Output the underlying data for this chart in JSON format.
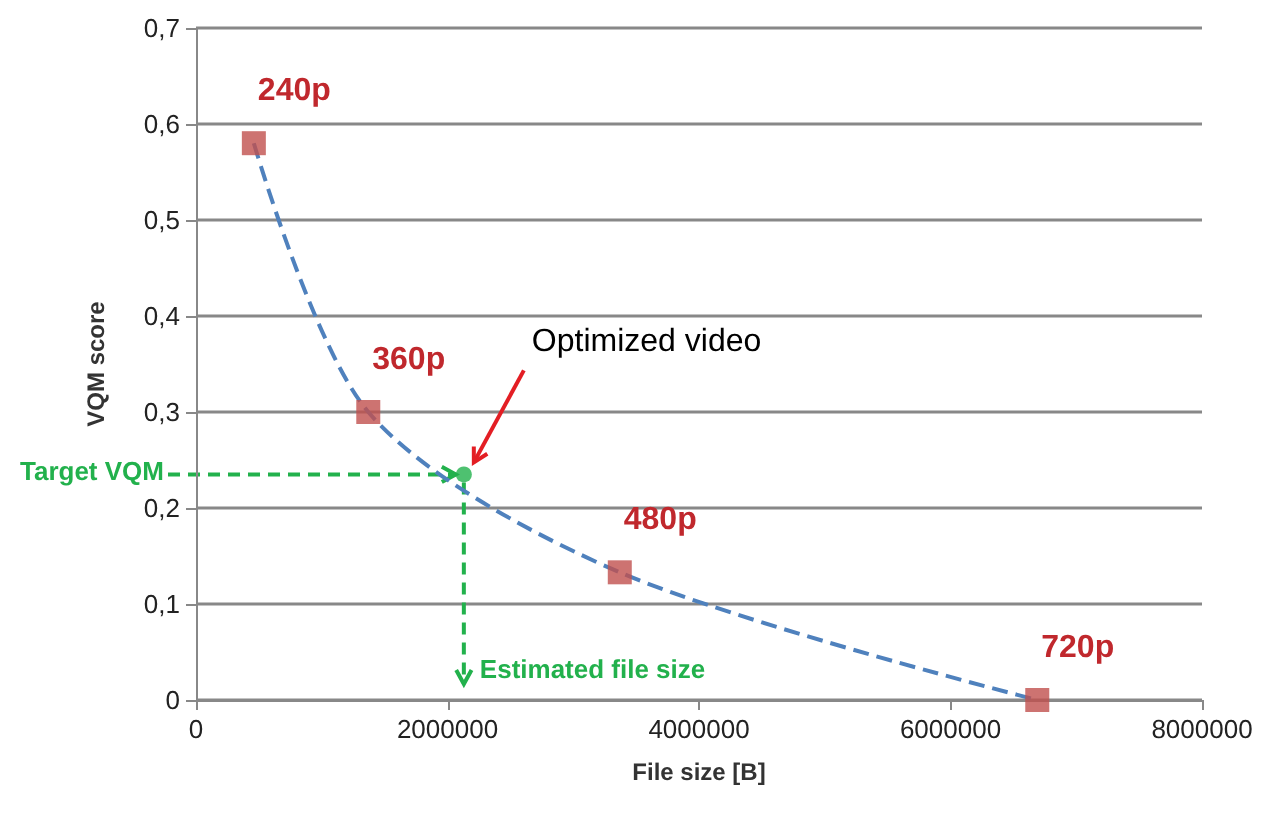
{
  "chart_data": {
    "type": "line",
    "xlabel": "File size [B]",
    "ylabel": "VQM score",
    "xlim": [
      0,
      8000000
    ],
    "xticks": [
      0,
      2000000,
      4000000,
      6000000,
      8000000
    ],
    "ylim": [
      0,
      0.7
    ],
    "yticks": [
      0,
      {
        "value": 0.1,
        "label": "0,1"
      },
      {
        "value": 0.2,
        "label": "0,2"
      },
      {
        "value": 0.3,
        "label": "0,3"
      },
      {
        "value": 0.4,
        "label": "0,4"
      },
      {
        "value": 0.5,
        "label": "0,5"
      },
      {
        "value": 0.6,
        "label": "0,6"
      },
      {
        "value": 0.7,
        "label": "0,7"
      }
    ],
    "grid": "y",
    "series": [
      {
        "color": "#4f81bd",
        "marker": "none",
        "line_style": "dashed",
        "x": [
          460000,
          1370000,
          3370000,
          6690000
        ],
        "values": [
          0.58,
          0.3,
          0.133,
          0
        ]
      },
      {
        "type": "scatter",
        "color": "#c0504d",
        "marker": "square",
        "x": [
          460000,
          1370000,
          3370000,
          6690000
        ],
        "values": [
          0.58,
          0.3,
          0.133,
          0
        ]
      },
      {
        "type": "scatter",
        "color": "#22b14c",
        "marker": "circle",
        "x": [
          2130000
        ],
        "values": [
          0.235
        ]
      }
    ],
    "annotations": [
      {
        "text": "Optimized video",
        "x": 2130000,
        "y": 0.235
      },
      {
        "text": "Target VQM",
        "x": 2130000,
        "y": 0.235
      },
      {
        "text": "Estimated file size",
        "x": 2130000,
        "y": 0.235
      },
      {
        "text": "240p",
        "x": 460000,
        "y": 0.58
      },
      {
        "text": "360p",
        "x": 1370000,
        "y": 0.3
      },
      {
        "text": "480p",
        "x": 3370000,
        "y": 0.133
      },
      {
        "text": "720p",
        "x": 6690000,
        "y": 0
      }
    ]
  }
}
